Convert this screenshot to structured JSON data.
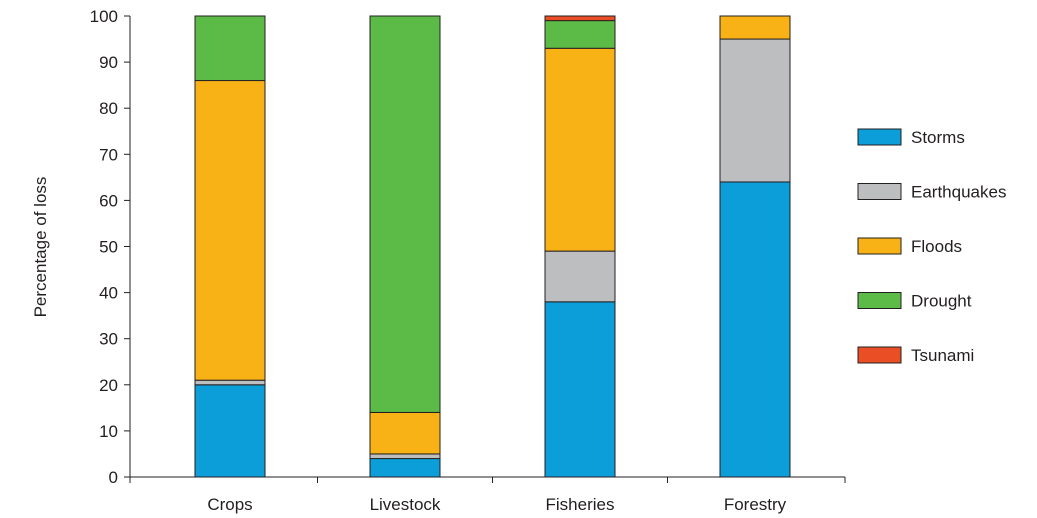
{
  "chart_data": {
    "type": "bar",
    "stacked": true,
    "title": "",
    "xlabel": "",
    "ylabel": "Percentage of loss",
    "ylim": [
      0,
      100
    ],
    "yticks": [
      0,
      10,
      20,
      30,
      40,
      50,
      60,
      70,
      80,
      90,
      100
    ],
    "grid": false,
    "legend_position": "right",
    "categories": [
      "Crops",
      "Livestock",
      "Fisheries",
      "Forestry"
    ],
    "series": [
      {
        "name": "Storms",
        "color": "#0b9ed8",
        "values": [
          20,
          4,
          38,
          64
        ]
      },
      {
        "name": "Earthquakes",
        "color": "#bcbec0",
        "values": [
          1,
          1,
          11,
          31
        ]
      },
      {
        "name": "Floods",
        "color": "#f9b216",
        "values": [
          65,
          9,
          44,
          5
        ]
      },
      {
        "name": "Drought",
        "color": "#5cbb46",
        "values": [
          14,
          86,
          6,
          0
        ]
      },
      {
        "name": "Tsunami",
        "color": "#ea4e25",
        "values": [
          0,
          0,
          1,
          0
        ]
      }
    ]
  }
}
